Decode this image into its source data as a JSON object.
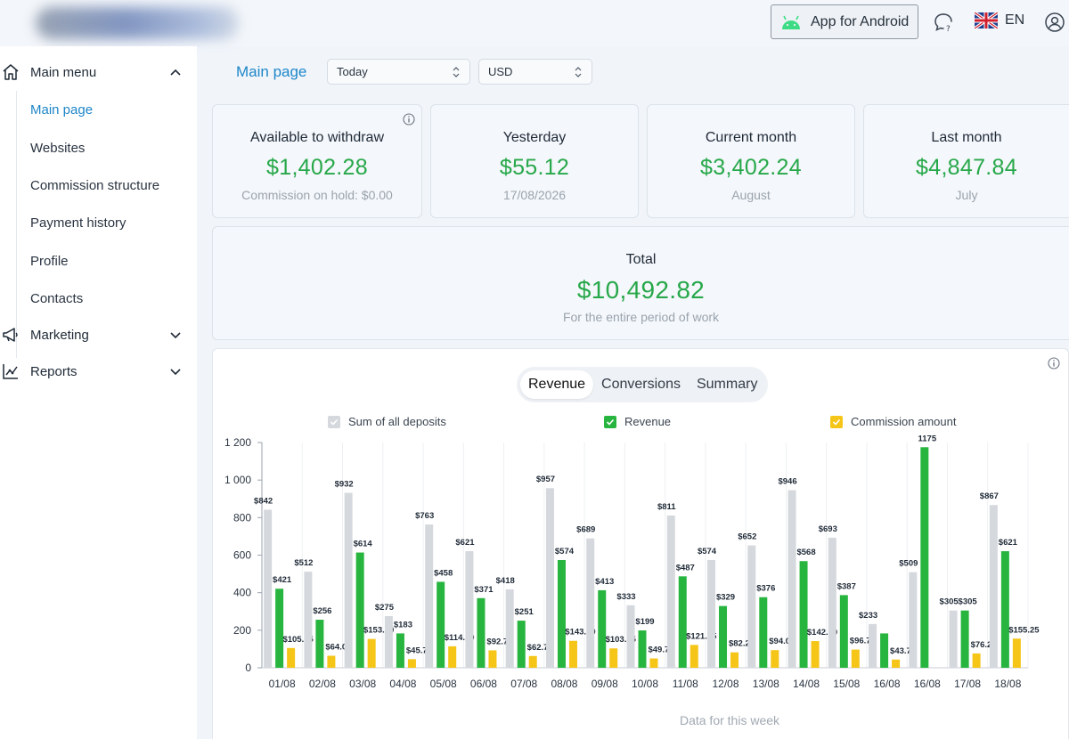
{
  "header": {
    "android_button_label": "App for Android",
    "language": "EN",
    "icons": {
      "android": "android-icon",
      "support": "chat-question-icon",
      "flag": "uk-flag-icon",
      "user": "user-circle-icon"
    }
  },
  "sidebar": {
    "main_menu_label": "Main menu",
    "items": [
      {
        "label": "Main page",
        "active": true
      },
      {
        "label": "Websites",
        "active": false
      },
      {
        "label": "Commission structure",
        "active": false
      },
      {
        "label": "Payment history",
        "active": false
      },
      {
        "label": "Profile",
        "active": false
      },
      {
        "label": "Contacts",
        "active": false
      }
    ],
    "marketing_label": "Marketing",
    "reports_label": "Reports"
  },
  "main": {
    "page_title": "Main page",
    "period_select": "Today",
    "currency_select": "USD"
  },
  "cards": {
    "available": {
      "title": "Available to withdraw",
      "value": "$1,402.28",
      "sub": "Commission on hold: $0.00"
    },
    "yesterday": {
      "title": "Yesterday",
      "value": "$55.12",
      "sub": "17/08/2026"
    },
    "current_month": {
      "title": "Current month",
      "value": "$3,402.24",
      "sub": "August"
    },
    "last_month": {
      "title": "Last month",
      "value": "$4,847.84",
      "sub": "July"
    },
    "total": {
      "title": "Total",
      "value": "$10,492.82",
      "sub": "For the entire period of work"
    }
  },
  "chart_tabs": [
    {
      "label": "Revenue",
      "active": true
    },
    {
      "label": "Conversions",
      "active": false
    },
    {
      "label": "Summary",
      "active": false
    }
  ],
  "legend": {
    "deposits": "Sum of all deposits",
    "revenue": "Revenue",
    "commission": "Commission amount"
  },
  "colors": {
    "accent": "#1e86c8",
    "value_green": "#27a84a",
    "deposits": "#d5d8dd",
    "revenue": "#27b53f",
    "commission": "#f5c518"
  },
  "chart_data": {
    "type": "bar",
    "categories": [
      "01/08",
      "02/08",
      "03/08",
      "04/08",
      "05/08",
      "06/08",
      "07/08",
      "08/08",
      "09/08",
      "10/08",
      "11/08",
      "12/08",
      "13/08",
      "14/08",
      "15/08",
      "16/08",
      "16/08",
      "17/08",
      "18/08"
    ],
    "series": [
      {
        "name": "Sum of all deposits",
        "values": [
          842,
          512,
          932,
          275,
          763,
          621,
          418,
          957,
          689,
          333,
          811,
          574,
          652,
          946,
          693,
          233,
          509,
          305,
          867
        ],
        "labels": [
          "$842",
          "$512",
          "$932",
          "$275",
          "$763",
          "$621",
          "$418",
          "$957",
          "$689",
          "$333",
          "$811",
          "$574",
          "$652",
          "$946",
          "$693",
          "$233",
          "$509",
          "$305",
          "$867"
        ]
      },
      {
        "name": "Revenue",
        "values": [
          421,
          256,
          614,
          183,
          458,
          371,
          251,
          574,
          413,
          199,
          487,
          329,
          376,
          568,
          387,
          183,
          1175,
          305,
          621
        ],
        "labels": [
          "$421",
          "$256",
          "$614",
          "$183",
          "$458",
          "$371",
          "$251",
          "$574",
          "$413",
          "$199",
          "$487",
          "$329",
          "$376",
          "$568",
          "$387",
          "",
          "1175",
          "$305",
          "$621"
        ]
      },
      {
        "name": "Commission amount",
        "values": [
          105.25,
          64,
          153.5,
          45.75,
          114.5,
          92.75,
          62.75,
          143.5,
          103.25,
          49.75,
          121.75,
          82.25,
          94,
          142,
          96.75,
          43.75,
          0,
          76.25,
          155.25
        ],
        "labels": [
          "$105.25",
          "$64.00",
          "$153.50",
          "$45.75",
          "$114.50",
          "$92.75",
          "$62.75",
          "$143.50",
          "$103.25",
          "$49.75",
          "$121.75",
          "$82.25",
          "$94.00",
          "$142.00",
          "$96.75",
          "$43.75",
          "",
          "$76.25",
          "$155.25"
        ]
      }
    ],
    "y_ticks": [
      "0",
      "200",
      "400",
      "600",
      "800",
      "1 000",
      "1 200"
    ],
    "ylim": [
      0,
      1200
    ],
    "xlabel": "Data for this week",
    "legend_position": "top"
  }
}
